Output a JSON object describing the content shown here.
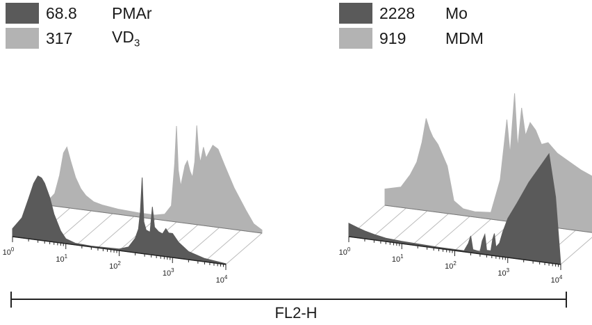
{
  "chart_data": [
    {
      "type": "area",
      "panel": "left",
      "x_axis_scale": "log",
      "x_ticks": [
        "10^0",
        "10^1",
        "10^2",
        "10^3",
        "10^4"
      ],
      "series": [
        {
          "name": "VD3",
          "legend_value": "317",
          "legend_label": "VD",
          "legend_label_sub": "3",
          "color": "#b3b3b3",
          "depth": "back",
          "points": [
            [
              1,
              0.05
            ],
            [
              1.3,
              0.12
            ],
            [
              1.6,
              0.3
            ],
            [
              1.9,
              0.52
            ],
            [
              2.2,
              0.58
            ],
            [
              2.6,
              0.45
            ],
            [
              3.2,
              0.3
            ],
            [
              4,
              0.2
            ],
            [
              5,
              0.14
            ],
            [
              7,
              0.09
            ],
            [
              10,
              0.07
            ],
            [
              20,
              0.05
            ],
            [
              50,
              0.04
            ],
            [
              100,
              0.04
            ],
            [
              150,
              0.06
            ],
            [
              200,
              0.15
            ],
            [
              230,
              0.55
            ],
            [
              250,
              0.92
            ],
            [
              270,
              0.5
            ],
            [
              300,
              0.35
            ],
            [
              360,
              0.55
            ],
            [
              400,
              0.6
            ],
            [
              450,
              0.5
            ],
            [
              500,
              0.45
            ],
            [
              550,
              0.6
            ],
            [
              600,
              0.95
            ],
            [
              650,
              0.7
            ],
            [
              700,
              0.6
            ],
            [
              800,
              0.75
            ],
            [
              900,
              0.65
            ],
            [
              1000,
              0.7
            ],
            [
              1200,
              0.78
            ],
            [
              1500,
              0.75
            ],
            [
              2000,
              0.6
            ],
            [
              3000,
              0.4
            ],
            [
              5000,
              0.2
            ],
            [
              7000,
              0.08
            ],
            [
              10000,
              0.03
            ]
          ]
        },
        {
          "name": "PMAr",
          "legend_value": "68.8",
          "legend_label": "PMAr",
          "color": "#5a5a5a",
          "depth": "front",
          "points": [
            [
              1,
              0.1
            ],
            [
              1.5,
              0.25
            ],
            [
              2,
              0.5
            ],
            [
              2.5,
              0.7
            ],
            [
              3,
              0.8
            ],
            [
              3.5,
              0.78
            ],
            [
              4,
              0.72
            ],
            [
              5,
              0.55
            ],
            [
              6,
              0.35
            ],
            [
              8,
              0.15
            ],
            [
              10,
              0.06
            ],
            [
              15,
              0.02
            ],
            [
              30,
              0.01
            ],
            [
              100,
              0.02
            ],
            [
              150,
              0.06
            ],
            [
              200,
              0.18
            ],
            [
              230,
              0.3
            ],
            [
              250,
              0.52
            ],
            [
              270,
              0.95
            ],
            [
              290,
              0.4
            ],
            [
              320,
              0.3
            ],
            [
              380,
              0.28
            ],
            [
              420,
              0.6
            ],
            [
              460,
              0.35
            ],
            [
              550,
              0.3
            ],
            [
              650,
              0.28
            ],
            [
              750,
              0.35
            ],
            [
              850,
              0.3
            ],
            [
              1000,
              0.3
            ],
            [
              1300,
              0.2
            ],
            [
              2000,
              0.1
            ],
            [
              4000,
              0.04
            ],
            [
              10000,
              0.01
            ]
          ]
        }
      ]
    },
    {
      "type": "area",
      "panel": "right",
      "x_axis_scale": "log",
      "x_ticks": [
        "10^0",
        "10^1",
        "10^2",
        "10^3",
        "10^4"
      ],
      "series": [
        {
          "name": "MDM",
          "legend_value": "919",
          "legend_label": "MDM",
          "color": "#b3b3b3",
          "depth": "back",
          "points": [
            [
              1,
              0.12
            ],
            [
              2,
              0.15
            ],
            [
              3,
              0.25
            ],
            [
              4,
              0.35
            ],
            [
              5,
              0.5
            ],
            [
              6,
              0.68
            ],
            [
              7,
              0.6
            ],
            [
              8,
              0.55
            ],
            [
              10,
              0.5
            ],
            [
              15,
              0.35
            ],
            [
              20,
              0.1
            ],
            [
              30,
              0.05
            ],
            [
              50,
              0.04
            ],
            [
              100,
              0.05
            ],
            [
              150,
              0.3
            ],
            [
              200,
              0.75
            ],
            [
              230,
              0.5
            ],
            [
              280,
              0.95
            ],
            [
              320,
              0.55
            ],
            [
              380,
              0.85
            ],
            [
              450,
              0.65
            ],
            [
              550,
              0.75
            ],
            [
              700,
              0.7
            ],
            [
              900,
              0.6
            ],
            [
              1200,
              0.62
            ],
            [
              1800,
              0.55
            ],
            [
              3000,
              0.5
            ],
            [
              5000,
              0.45
            ],
            [
              10000,
              0.4
            ]
          ]
        },
        {
          "name": "Mo",
          "legend_value": "2228",
          "legend_label": "Mo",
          "color": "#5a5a5a",
          "depth": "front",
          "points": [
            [
              1,
              0.12
            ],
            [
              1.5,
              0.09
            ],
            [
              2,
              0.07
            ],
            [
              3,
              0.05
            ],
            [
              5,
              0.03
            ],
            [
              10,
              0.02
            ],
            [
              50,
              0.01
            ],
            [
              150,
              0.01
            ],
            [
              180,
              0.08
            ],
            [
              200,
              0.15
            ],
            [
              220,
              0.03
            ],
            [
              300,
              0.02
            ],
            [
              330,
              0.12
            ],
            [
              370,
              0.18
            ],
            [
              400,
              0.04
            ],
            [
              480,
              0.04
            ],
            [
              520,
              0.15
            ],
            [
              560,
              0.2
            ],
            [
              600,
              0.08
            ],
            [
              700,
              0.12
            ],
            [
              800,
              0.22
            ],
            [
              1000,
              0.35
            ],
            [
              1500,
              0.5
            ],
            [
              2500,
              0.7
            ],
            [
              4000,
              0.85
            ],
            [
              6000,
              0.98
            ],
            [
              8000,
              0.6
            ],
            [
              10000,
              0.0
            ]
          ]
        }
      ]
    }
  ],
  "xaxis_title": "FL2-H"
}
